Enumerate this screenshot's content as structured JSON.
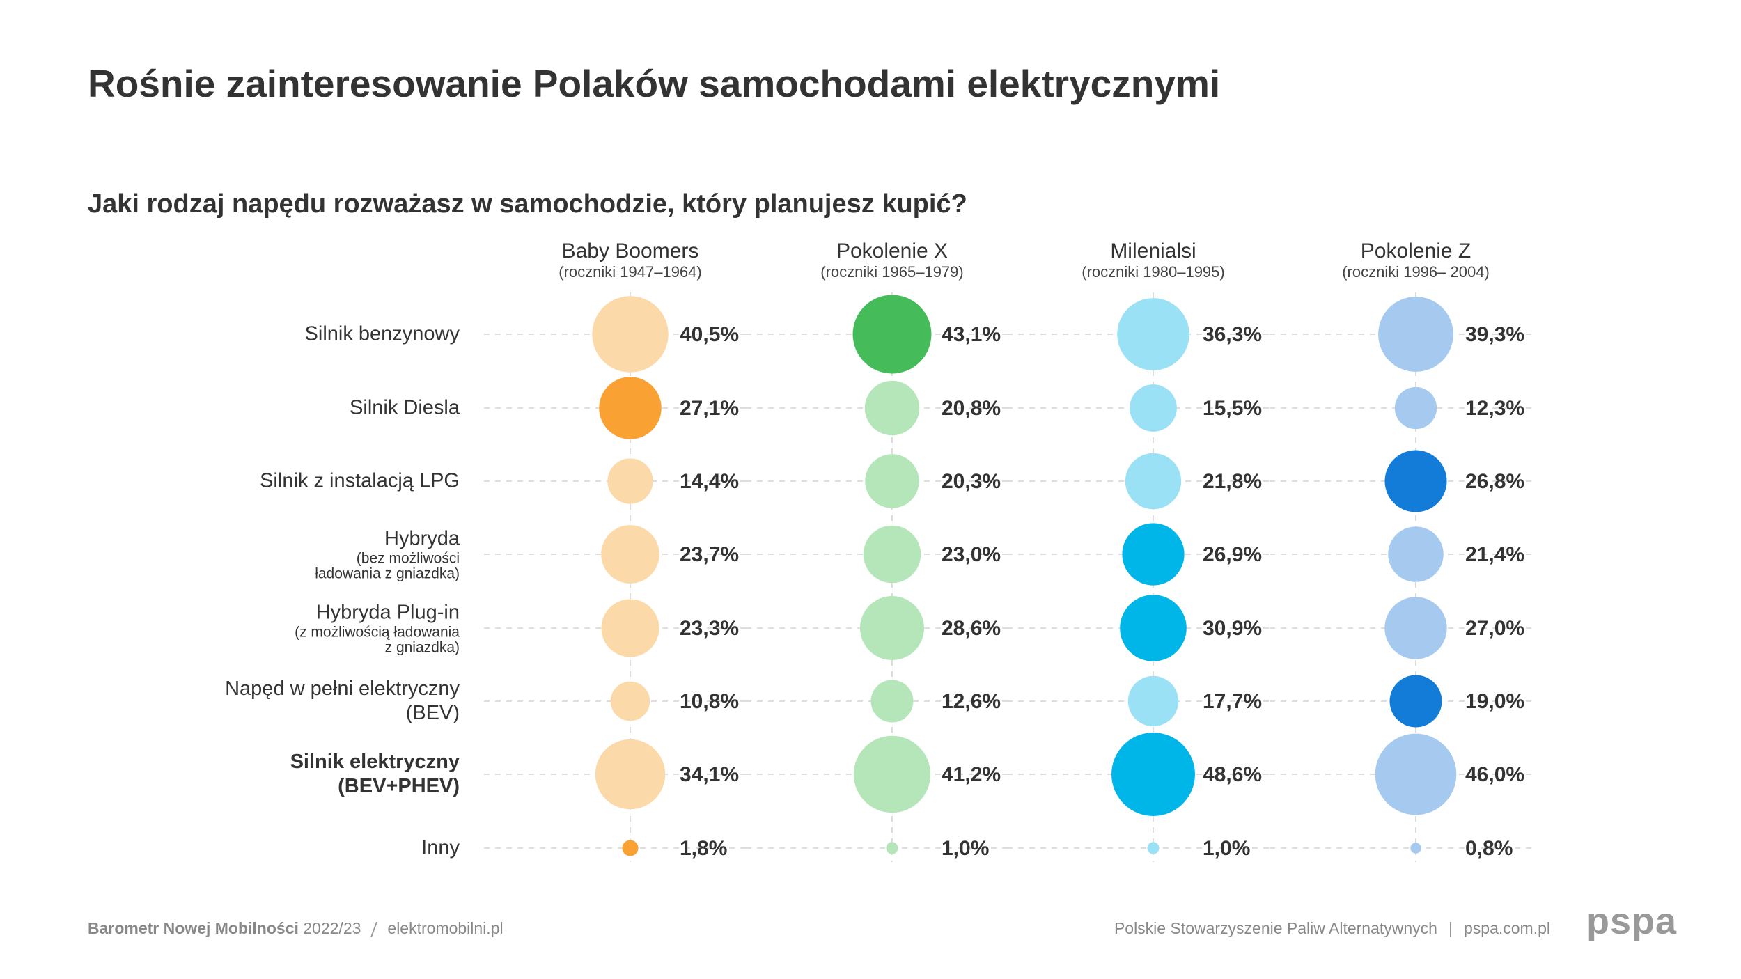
{
  "chart_data": {
    "type": "bubble",
    "title": "Rośnie zainteresowanie Polaków samochodami elektrycznymi",
    "subtitle": "Jaki rodzaj napędu rozważasz w samochodzie, który planujesz kupić?",
    "categories": [
      "Silnik benzynowy",
      "Silnik Diesla",
      "Silnik z instalacją LPG",
      "Hybryda",
      "Hybryda Plug-in",
      "Napęd w pełni elektryczny (BEV)",
      "Silnik elektryczny (BEV+PHEV)",
      "Inny"
    ],
    "category_notes": [
      null,
      null,
      null,
      "(bez możliwości ładowania z gniazdka)",
      "(z możliwością ładowania z gniazdka)",
      null,
      null,
      null
    ],
    "bold_categories": [
      6
    ],
    "series": [
      {
        "name": "Baby Boomers",
        "subname": "(roczniki 1947–1964)",
        "values": [
          40.5,
          27.1,
          14.4,
          23.7,
          23.3,
          10.8,
          34.1,
          1.8
        ],
        "value_labels": [
          "40,5%",
          "27,1%",
          "14,4%",
          "23,7%",
          "23,3%",
          "10,8%",
          "34,1%",
          "1,8%"
        ],
        "colors": [
          "#fbd9a8",
          "#f9a233",
          "#fbd9a8",
          "#fbd9a8",
          "#fbd9a8",
          "#fbd9a8",
          "#fbd9a8",
          "#f9a233"
        ]
      },
      {
        "name": "Pokolenie X",
        "subname": "(roczniki 1965–1979)",
        "values": [
          43.1,
          20.8,
          20.3,
          23.0,
          28.6,
          12.6,
          41.2,
          1.0
        ],
        "value_labels": [
          "43,1%",
          "20,8%",
          "20,3%",
          "23,0%",
          "28,6%",
          "12,6%",
          "41,2%",
          "1,0%"
        ],
        "colors": [
          "#45bb5a",
          "#b5e6ba",
          "#b5e6ba",
          "#b5e6ba",
          "#b5e6ba",
          "#b5e6ba",
          "#b5e6ba",
          "#b5e6ba"
        ]
      },
      {
        "name": "Milenialsi",
        "subname": "(roczniki 1980–1995)",
        "values": [
          36.3,
          15.5,
          21.8,
          26.9,
          30.9,
          17.7,
          48.6,
          1.0
        ],
        "value_labels": [
          "36,3%",
          "15,5%",
          "21,8%",
          "26,9%",
          "30,9%",
          "17,7%",
          "48,6%",
          "1,0%"
        ],
        "colors": [
          "#9be1f6",
          "#9be1f6",
          "#9be1f6",
          "#00b5e8",
          "#00b5e8",
          "#9be1f6",
          "#00b5e8",
          "#9be1f6"
        ]
      },
      {
        "name": "Pokolenie Z",
        "subname": "(roczniki 1996– 2004)",
        "values": [
          39.3,
          12.3,
          26.8,
          21.4,
          27.0,
          19.0,
          46.0,
          0.8
        ],
        "value_labels": [
          "39,3%",
          "12,3%",
          "26,8%",
          "21,4%",
          "27,0%",
          "19,0%",
          "46,0%",
          "0,8%"
        ],
        "colors": [
          "#a6c9ef",
          "#a6c9ef",
          "#137bd8",
          "#a6c9ef",
          "#a6c9ef",
          "#137bd8",
          "#a6c9ef",
          "#a6c9ef"
        ]
      }
    ]
  },
  "footer": {
    "source_name": "Barometr Nowej Mobilności",
    "source_year": "2022/23",
    "site": "elektromobilni.pl",
    "org": "Polskie Stowarzyszenie Paliw Alternatywnych",
    "org_site": "pspa.com.pl",
    "logo": "pspa"
  }
}
